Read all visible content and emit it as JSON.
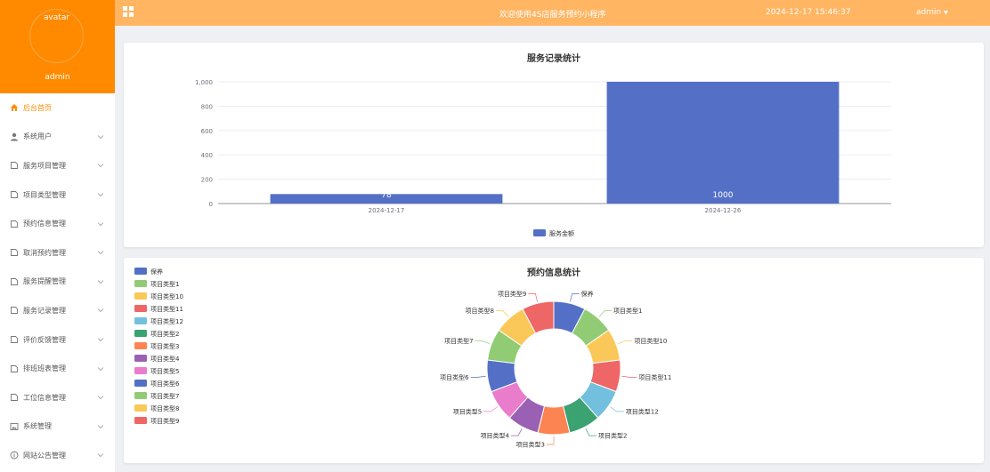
{
  "sidebar": {
    "avatar_text": "avatar",
    "username": "admin",
    "items": [
      {
        "label": "后台首页",
        "icon": "home-icon",
        "active": true,
        "has_children": false
      },
      {
        "label": "系统用户",
        "icon": "user-icon",
        "active": false,
        "has_children": true
      },
      {
        "label": "服务项目管理",
        "icon": "doc-icon",
        "active": false,
        "has_children": true
      },
      {
        "label": "项目类型管理",
        "icon": "doc-icon",
        "active": false,
        "has_children": true
      },
      {
        "label": "预约信息管理",
        "icon": "doc-icon",
        "active": false,
        "has_children": true
      },
      {
        "label": "取消预约管理",
        "icon": "doc-icon",
        "active": false,
        "has_children": true
      },
      {
        "label": "服务提醒管理",
        "icon": "doc-icon",
        "active": false,
        "has_children": true
      },
      {
        "label": "服务记录管理",
        "icon": "doc-icon",
        "active": false,
        "has_children": true
      },
      {
        "label": "评价反馈管理",
        "icon": "doc-icon",
        "active": false,
        "has_children": true
      },
      {
        "label": "排班班表管理",
        "icon": "doc-icon",
        "active": false,
        "has_children": true
      },
      {
        "label": "工位信息管理",
        "icon": "doc-icon",
        "active": false,
        "has_children": true
      },
      {
        "label": "系统管理",
        "icon": "image-icon",
        "active": false,
        "has_children": true
      },
      {
        "label": "网站公告管理",
        "icon": "info-icon",
        "active": false,
        "has_children": true
      }
    ]
  },
  "header": {
    "welcome": "欢迎使用4S店服务预约小程序",
    "datetime": "2024-12-17 15:46:37",
    "user_menu": "admin"
  },
  "colors": {
    "sidebar_top": "#ff8a00",
    "header": "#ffb562",
    "accent": "#ff8a00"
  },
  "chart_data": [
    {
      "type": "bar",
      "title": "服务记录统计",
      "categories": [
        "2024-12-17",
        "2024-12-26"
      ],
      "series": [
        {
          "name": "服务金额",
          "values": [
            78,
            1000
          ],
          "color": "#5470c6"
        }
      ],
      "ylim": [
        0,
        1000
      ],
      "yticks": [
        "0",
        "200",
        "400",
        "600",
        "800",
        "1,000"
      ],
      "grid": true,
      "legend": "bottom-center"
    },
    {
      "type": "pie",
      "title": "预约信息统计",
      "donut": true,
      "legend": "top-left",
      "slices": [
        {
          "name": "保养",
          "value": 1,
          "color": "#5470c6"
        },
        {
          "name": "项目类型1",
          "value": 1,
          "color": "#91cc75"
        },
        {
          "name": "项目类型10",
          "value": 1,
          "color": "#fac858"
        },
        {
          "name": "项目类型11",
          "value": 1,
          "color": "#ee6666"
        },
        {
          "name": "项目类型12",
          "value": 1,
          "color": "#73c0de"
        },
        {
          "name": "项目类型2",
          "value": 1,
          "color": "#3ba272"
        },
        {
          "name": "项目类型3",
          "value": 1,
          "color": "#fc8452"
        },
        {
          "name": "项目类型4",
          "value": 1,
          "color": "#9a60b4"
        },
        {
          "name": "项目类型5",
          "value": 1,
          "color": "#ea7ccc"
        },
        {
          "name": "项目类型6",
          "value": 1,
          "color": "#5470c6"
        },
        {
          "name": "项目类型7",
          "value": 1,
          "color": "#91cc75"
        },
        {
          "name": "项目类型8",
          "value": 1,
          "color": "#fac858"
        },
        {
          "name": "项目类型9",
          "value": 1,
          "color": "#ee6666"
        }
      ]
    }
  ]
}
